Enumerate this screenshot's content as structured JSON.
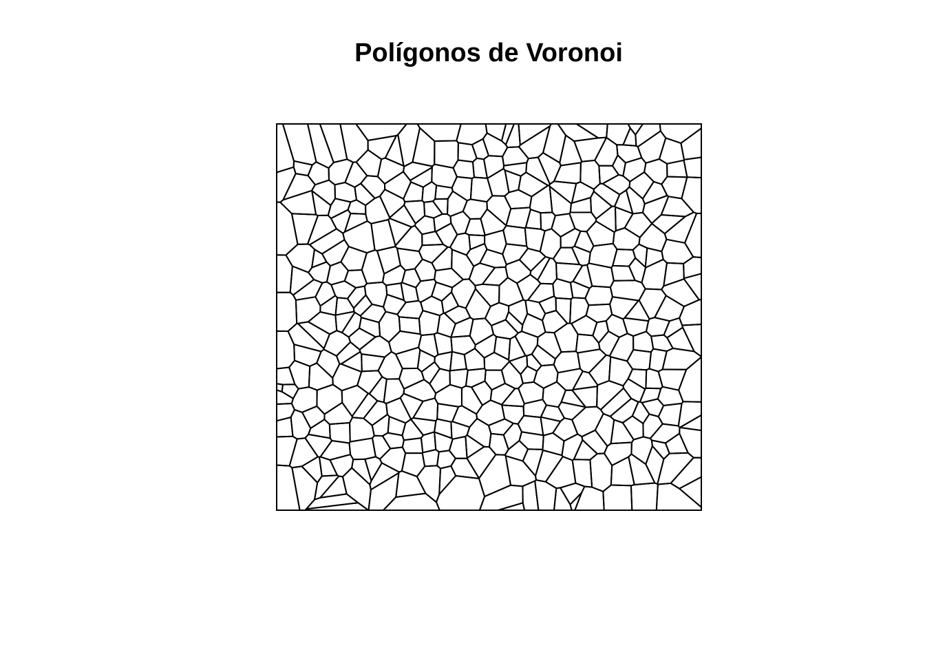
{
  "title": "Polígonos de Voronoi",
  "chart_data": {
    "type": "voronoi-diagram",
    "title": "Polígonos de Voronoi",
    "axes": "none",
    "frame": "box",
    "cell_count_approx": 400,
    "line_color": "#000000",
    "background": "#ffffff"
  }
}
